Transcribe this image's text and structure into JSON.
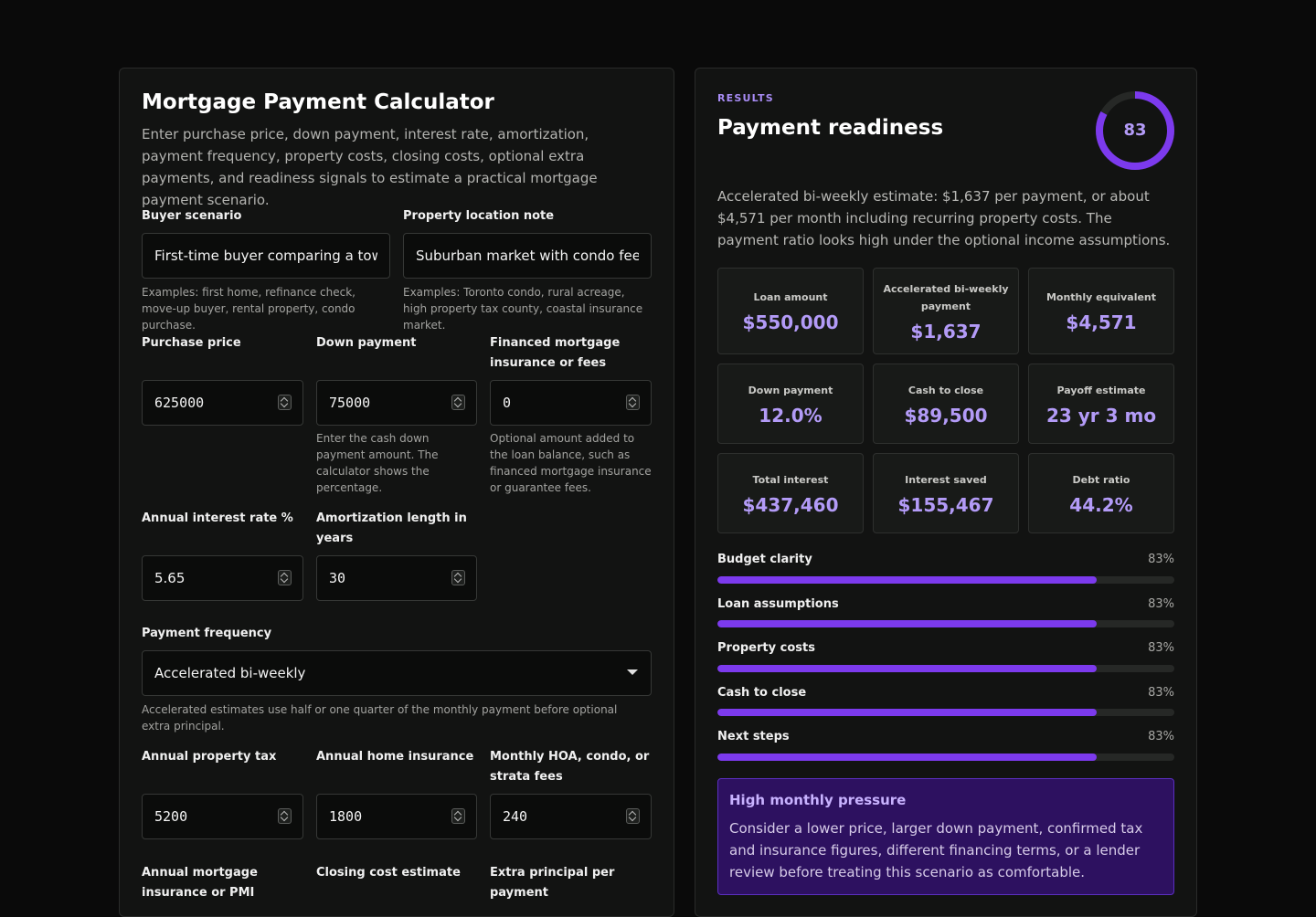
{
  "calculator": {
    "title": "Mortgage Payment Calculator",
    "intro": "Enter purchase price, down payment, interest rate, amortization, payment frequency, property costs, closing costs, optional extra payments, and readiness signals to estimate a practical mortgage payment scenario.",
    "buyer_scenario": {
      "label": "Buyer scenario",
      "value": "First-time buyer comparing a townhouse",
      "help": "Examples: first home, refinance check, move-up buyer, rental property, condo purchase."
    },
    "property_location": {
      "label": "Property location note",
      "value": "Suburban market with condo fees",
      "help": "Examples: Toronto condo, rural acreage, high property tax county, coastal insurance market."
    },
    "purchase_price": {
      "label": "Purchase price",
      "value": "625000"
    },
    "down_payment": {
      "label": "Down payment",
      "value": "75000",
      "help": "Enter the cash down payment amount. The calculator shows the percentage."
    },
    "financed_insurance": {
      "label": "Financed mortgage insurance or fees",
      "value": "0",
      "help": "Optional amount added to the loan balance, such as financed mortgage insurance or guarantee fees."
    },
    "interest_rate": {
      "label": "Annual interest rate %",
      "value": "5.65"
    },
    "amortization": {
      "label": "Amortization length in years",
      "value": "30"
    },
    "payment_frequency": {
      "label": "Payment frequency",
      "value": "Accelerated bi-weekly",
      "help": "Accelerated estimates use half or one quarter of the monthly payment before optional extra principal."
    },
    "property_tax": {
      "label": "Annual property tax",
      "value": "5200"
    },
    "home_insurance": {
      "label": "Annual home insurance",
      "value": "1800"
    },
    "hoa_fees": {
      "label": "Monthly HOA, condo, or strata fees",
      "value": "240"
    },
    "mortgage_insurance": {
      "label": "Annual mortgage insurance or PMI"
    },
    "closing_costs": {
      "label": "Closing cost estimate"
    },
    "extra_principal": {
      "label": "Extra principal per payment"
    }
  },
  "results": {
    "kicker": "RESULTS",
    "title": "Payment readiness",
    "score": 83,
    "score_text": "83",
    "summary": "Accelerated bi-weekly estimate: $1,637 per payment, or about $4,571 per month including recurring property costs. The payment ratio looks high under the optional income assumptions.",
    "stats": [
      {
        "label": "Loan amount",
        "value": "$550,000"
      },
      {
        "label": "Accelerated bi-weekly payment",
        "value": "$1,637"
      },
      {
        "label": "Monthly equivalent",
        "value": "$4,571"
      },
      {
        "label": "Down payment",
        "value": "12.0%"
      },
      {
        "label": "Cash to close",
        "value": "$89,500"
      },
      {
        "label": "Payoff estimate",
        "value": "23 yr 3 mo"
      },
      {
        "label": "Total interest",
        "value": "$437,460"
      },
      {
        "label": "Interest saved",
        "value": "$155,467"
      },
      {
        "label": "Debt ratio",
        "value": "44.2%"
      }
    ],
    "bars": [
      {
        "label": "Budget clarity",
        "value": 83,
        "pct_text": "83%"
      },
      {
        "label": "Loan assumptions",
        "value": 83,
        "pct_text": "83%"
      },
      {
        "label": "Property costs",
        "value": 83,
        "pct_text": "83%"
      },
      {
        "label": "Cash to close",
        "value": 83,
        "pct_text": "83%"
      },
      {
        "label": "Next steps",
        "value": 83,
        "pct_text": "83%"
      }
    ],
    "alert": {
      "title": "High monthly pressure",
      "body": "Consider a lower price, larger down payment, confirmed tax and insurance figures, different financing terms, or a lender review before treating this scenario as comfortable."
    }
  },
  "colors": {
    "accent": "#7c3aed",
    "accent_text": "#b39bf7",
    "alert_bg": "#2d1160"
  }
}
